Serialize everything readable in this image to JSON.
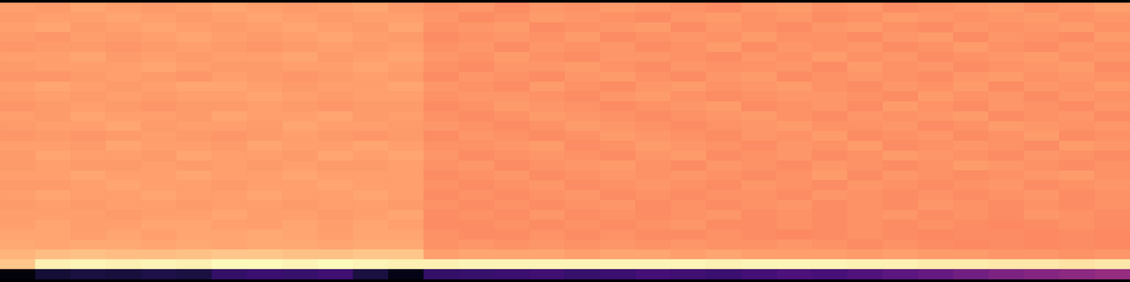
{
  "chart_data": {
    "type": "heatmap",
    "color": "magma",
    "tick_labels": false,
    "zlim": [
      0,
      1
    ],
    "cells": [
      [
        0.8,
        0.79,
        0.81,
        0.8,
        0.79,
        0.8,
        0.81,
        0.8,
        0.79,
        0.8,
        0.81,
        0.79,
        0.77,
        0.78,
        0.76,
        0.78,
        0.77,
        0.79,
        0.78,
        0.77,
        0.76,
        0.78,
        0.79,
        0.77,
        0.78,
        0.76,
        0.77,
        0.78,
        0.79,
        0.77,
        0.78,
        0.8
      ],
      [
        0.79,
        0.8,
        0.8,
        0.81,
        0.8,
        0.79,
        0.8,
        0.81,
        0.8,
        0.79,
        0.8,
        0.8,
        0.78,
        0.76,
        0.77,
        0.79,
        0.78,
        0.77,
        0.76,
        0.78,
        0.79,
        0.77,
        0.78,
        0.76,
        0.77,
        0.79,
        0.78,
        0.77,
        0.78,
        0.79,
        0.77,
        0.78
      ],
      [
        0.8,
        0.81,
        0.79,
        0.8,
        0.81,
        0.8,
        0.79,
        0.8,
        0.81,
        0.8,
        0.79,
        0.81,
        0.77,
        0.78,
        0.79,
        0.76,
        0.77,
        0.78,
        0.79,
        0.76,
        0.78,
        0.77,
        0.76,
        0.78,
        0.79,
        0.77,
        0.76,
        0.78,
        0.77,
        0.78,
        0.79,
        0.77
      ],
      [
        0.79,
        0.78,
        0.8,
        0.79,
        0.8,
        0.81,
        0.8,
        0.79,
        0.8,
        0.81,
        0.8,
        0.79,
        0.76,
        0.77,
        0.78,
        0.77,
        0.79,
        0.76,
        0.77,
        0.78,
        0.77,
        0.79,
        0.77,
        0.77,
        0.76,
        0.78,
        0.79,
        0.76,
        0.78,
        0.77,
        0.76,
        0.79
      ],
      [
        0.78,
        0.79,
        0.79,
        0.78,
        0.79,
        0.8,
        0.79,
        0.78,
        0.79,
        0.8,
        0.79,
        0.8,
        0.77,
        0.78,
        0.76,
        0.78,
        0.77,
        0.78,
        0.76,
        0.77,
        0.79,
        0.76,
        0.78,
        0.77,
        0.78,
        0.76,
        0.77,
        0.79,
        0.77,
        0.76,
        0.78,
        0.77
      ],
      [
        0.8,
        0.8,
        0.81,
        0.79,
        0.8,
        0.79,
        0.8,
        0.8,
        0.81,
        0.79,
        0.8,
        0.81,
        0.78,
        0.77,
        0.79,
        0.77,
        0.76,
        0.78,
        0.78,
        0.77,
        0.76,
        0.78,
        0.77,
        0.79,
        0.77,
        0.78,
        0.76,
        0.77,
        0.78,
        0.79,
        0.77,
        0.78
      ],
      [
        0.79,
        0.8,
        0.8,
        0.8,
        0.81,
        0.8,
        0.79,
        0.79,
        0.8,
        0.8,
        0.81,
        0.8,
        0.77,
        0.76,
        0.78,
        0.78,
        0.79,
        0.77,
        0.76,
        0.78,
        0.77,
        0.77,
        0.78,
        0.76,
        0.79,
        0.77,
        0.78,
        0.76,
        0.77,
        0.78,
        0.79,
        0.76
      ],
      [
        0.78,
        0.78,
        0.79,
        0.8,
        0.79,
        0.78,
        0.8,
        0.79,
        0.78,
        0.79,
        0.8,
        0.79,
        0.76,
        0.78,
        0.77,
        0.76,
        0.78,
        0.79,
        0.77,
        0.76,
        0.78,
        0.79,
        0.76,
        0.77,
        0.78,
        0.77,
        0.76,
        0.78,
        0.79,
        0.77,
        0.78,
        0.77
      ],
      [
        0.8,
        0.81,
        0.8,
        0.79,
        0.8,
        0.81,
        0.81,
        0.8,
        0.79,
        0.8,
        0.8,
        0.81,
        0.78,
        0.77,
        0.76,
        0.79,
        0.77,
        0.76,
        0.78,
        0.79,
        0.77,
        0.78,
        0.79,
        0.77,
        0.76,
        0.78,
        0.77,
        0.79,
        0.76,
        0.78,
        0.77,
        0.79
      ],
      [
        0.79,
        0.8,
        0.79,
        0.8,
        0.79,
        0.8,
        0.8,
        0.81,
        0.8,
        0.79,
        0.8,
        0.8,
        0.77,
        0.78,
        0.78,
        0.77,
        0.76,
        0.78,
        0.79,
        0.77,
        0.76,
        0.77,
        0.78,
        0.78,
        0.77,
        0.76,
        0.79,
        0.77,
        0.78,
        0.76,
        0.78,
        0.77
      ],
      [
        0.78,
        0.79,
        0.8,
        0.79,
        0.78,
        0.79,
        0.79,
        0.8,
        0.79,
        0.78,
        0.79,
        0.79,
        0.76,
        0.77,
        0.79,
        0.78,
        0.77,
        0.76,
        0.77,
        0.78,
        0.79,
        0.76,
        0.77,
        0.78,
        0.76,
        0.79,
        0.77,
        0.76,
        0.78,
        0.77,
        0.76,
        0.78
      ],
      [
        0.8,
        0.79,
        0.81,
        0.8,
        0.8,
        0.79,
        0.81,
        0.8,
        0.8,
        0.81,
        0.79,
        0.8,
        0.77,
        0.76,
        0.77,
        0.79,
        0.78,
        0.77,
        0.76,
        0.77,
        0.78,
        0.79,
        0.77,
        0.76,
        0.78,
        0.77,
        0.78,
        0.79,
        0.76,
        0.77,
        0.78,
        0.76
      ],
      [
        0.79,
        0.8,
        0.8,
        0.81,
        0.79,
        0.8,
        0.8,
        0.79,
        0.81,
        0.8,
        0.8,
        0.79,
        0.78,
        0.77,
        0.76,
        0.77,
        0.79,
        0.78,
        0.77,
        0.76,
        0.77,
        0.78,
        0.79,
        0.77,
        0.77,
        0.78,
        0.76,
        0.77,
        0.79,
        0.78,
        0.77,
        0.78
      ],
      [
        0.78,
        0.79,
        0.78,
        0.79,
        0.8,
        0.79,
        0.78,
        0.79,
        0.8,
        0.79,
        0.78,
        0.79,
        0.76,
        0.78,
        0.77,
        0.76,
        0.77,
        0.79,
        0.78,
        0.77,
        0.76,
        0.78,
        0.77,
        0.79,
        0.76,
        0.77,
        0.78,
        0.76,
        0.77,
        0.79,
        0.76,
        0.77
      ],
      [
        0.8,
        0.8,
        0.79,
        0.81,
        0.8,
        0.8,
        0.79,
        0.81,
        0.8,
        0.8,
        0.81,
        0.8,
        0.77,
        0.77,
        0.78,
        0.79,
        0.76,
        0.77,
        0.79,
        0.78,
        0.77,
        0.76,
        0.78,
        0.77,
        0.79,
        0.76,
        0.77,
        0.78,
        0.77,
        0.76,
        0.79,
        0.78
      ],
      [
        0.79,
        0.81,
        0.8,
        0.8,
        0.79,
        0.81,
        0.8,
        0.8,
        0.79,
        0.81,
        0.8,
        0.81,
        0.78,
        0.76,
        0.77,
        0.78,
        0.77,
        0.76,
        0.78,
        0.79,
        0.76,
        0.77,
        0.78,
        0.76,
        0.77,
        0.79,
        0.78,
        0.77,
        0.76,
        0.78,
        0.77,
        0.76
      ],
      [
        0.79,
        0.8,
        0.79,
        0.79,
        0.8,
        0.79,
        0.8,
        0.79,
        0.8,
        0.79,
        0.79,
        0.8,
        0.77,
        0.78,
        0.76,
        0.77,
        0.78,
        0.79,
        0.77,
        0.76,
        0.78,
        0.77,
        0.76,
        0.78,
        0.77,
        0.76,
        0.77,
        0.79,
        0.78,
        0.77,
        0.76,
        0.77
      ],
      [
        0.8,
        0.8,
        0.81,
        0.8,
        0.8,
        0.81,
        0.8,
        0.8,
        0.81,
        0.8,
        0.8,
        0.8,
        0.76,
        0.77,
        0.78,
        0.76,
        0.77,
        0.78,
        0.77,
        0.78,
        0.77,
        0.76,
        0.77,
        0.79,
        0.76,
        0.78,
        0.77,
        0.76,
        0.77,
        0.78,
        0.79,
        0.77
      ],
      [
        0.79,
        0.79,
        0.8,
        0.81,
        0.8,
        0.8,
        0.79,
        0.8,
        0.8,
        0.81,
        0.8,
        0.8,
        0.77,
        0.76,
        0.77,
        0.78,
        0.76,
        0.77,
        0.78,
        0.77,
        0.76,
        0.78,
        0.77,
        0.76,
        0.78,
        0.77,
        0.76,
        0.77,
        0.78,
        0.76,
        0.77,
        0.78
      ],
      [
        0.8,
        0.81,
        0.8,
        0.8,
        0.81,
        0.8,
        0.8,
        0.81,
        0.8,
        0.8,
        0.81,
        0.8,
        0.76,
        0.77,
        0.76,
        0.77,
        0.78,
        0.76,
        0.77,
        0.76,
        0.77,
        0.77,
        0.76,
        0.78,
        0.77,
        0.76,
        0.77,
        0.76,
        0.77,
        0.78,
        0.76,
        0.77
      ],
      [
        0.79,
        0.8,
        0.79,
        0.8,
        0.8,
        0.79,
        0.8,
        0.8,
        0.79,
        0.8,
        0.8,
        0.79,
        0.77,
        0.76,
        0.77,
        0.76,
        0.77,
        0.78,
        0.76,
        0.77,
        0.76,
        0.77,
        0.78,
        0.76,
        0.77,
        0.76,
        0.78,
        0.77,
        0.76,
        0.77,
        0.76,
        0.77
      ],
      [
        0.8,
        0.8,
        0.8,
        0.79,
        0.8,
        0.8,
        0.81,
        0.8,
        0.8,
        0.79,
        0.8,
        0.81,
        0.76,
        0.77,
        0.76,
        0.78,
        0.76,
        0.77,
        0.76,
        0.77,
        0.78,
        0.76,
        0.77,
        0.76,
        0.77,
        0.78,
        0.76,
        0.77,
        0.76,
        0.78,
        0.77,
        0.76
      ],
      [
        0.8,
        0.81,
        0.8,
        0.8,
        0.81,
        0.81,
        0.8,
        0.8,
        0.81,
        0.8,
        0.81,
        0.8,
        0.76,
        0.76,
        0.77,
        0.76,
        0.77,
        0.76,
        0.77,
        0.78,
        0.76,
        0.76,
        0.77,
        0.76,
        0.77,
        0.76,
        0.77,
        0.76,
        0.75,
        0.76,
        0.77,
        0.76
      ],
      [
        0.81,
        0.81,
        0.8,
        0.81,
        0.8,
        0.81,
        0.81,
        0.82,
        0.81,
        0.8,
        0.81,
        0.81,
        0.77,
        0.76,
        0.76,
        0.77,
        0.76,
        0.77,
        0.76,
        0.76,
        0.77,
        0.76,
        0.75,
        0.76,
        0.77,
        0.76,
        0.75,
        0.76,
        0.76,
        0.75,
        0.76,
        0.75
      ],
      [
        0.82,
        0.81,
        0.82,
        0.82,
        0.81,
        0.82,
        0.81,
        0.82,
        0.82,
        0.81,
        0.82,
        0.82,
        0.77,
        0.78,
        0.77,
        0.78,
        0.77,
        0.78,
        0.77,
        0.78,
        0.77,
        0.77,
        0.78,
        0.77,
        0.76,
        0.77,
        0.76,
        0.75,
        0.76,
        0.75,
        0.76,
        0.75
      ],
      [
        0.84,
        0.86,
        0.87,
        0.86,
        0.86,
        0.87,
        0.88,
        0.88,
        0.87,
        0.87,
        0.88,
        0.88,
        0.8,
        0.81,
        0.81,
        0.81,
        0.8,
        0.81,
        0.81,
        0.8,
        0.81,
        0.8,
        0.8,
        0.8,
        0.79,
        0.8,
        0.79,
        0.79,
        0.78,
        0.78,
        0.77,
        0.78
      ],
      [
        0.88,
        0.97,
        0.98,
        0.97,
        0.98,
        0.97,
        0.99,
        0.99,
        0.98,
        0.99,
        0.98,
        0.97,
        0.97,
        0.98,
        0.98,
        0.98,
        0.98,
        0.98,
        0.98,
        0.98,
        0.97,
        0.98,
        0.98,
        0.98,
        0.97,
        0.97,
        0.96,
        0.96,
        0.95,
        0.95,
        0.94,
        0.95
      ],
      [
        0.02,
        0.1,
        0.12,
        0.11,
        0.13,
        0.12,
        0.18,
        0.2,
        0.19,
        0.21,
        0.12,
        0.04,
        0.18,
        0.19,
        0.2,
        0.21,
        0.19,
        0.2,
        0.22,
        0.21,
        0.2,
        0.22,
        0.24,
        0.23,
        0.25,
        0.28,
        0.3,
        0.33,
        0.36,
        0.38,
        0.4,
        0.42
      ]
    ]
  }
}
